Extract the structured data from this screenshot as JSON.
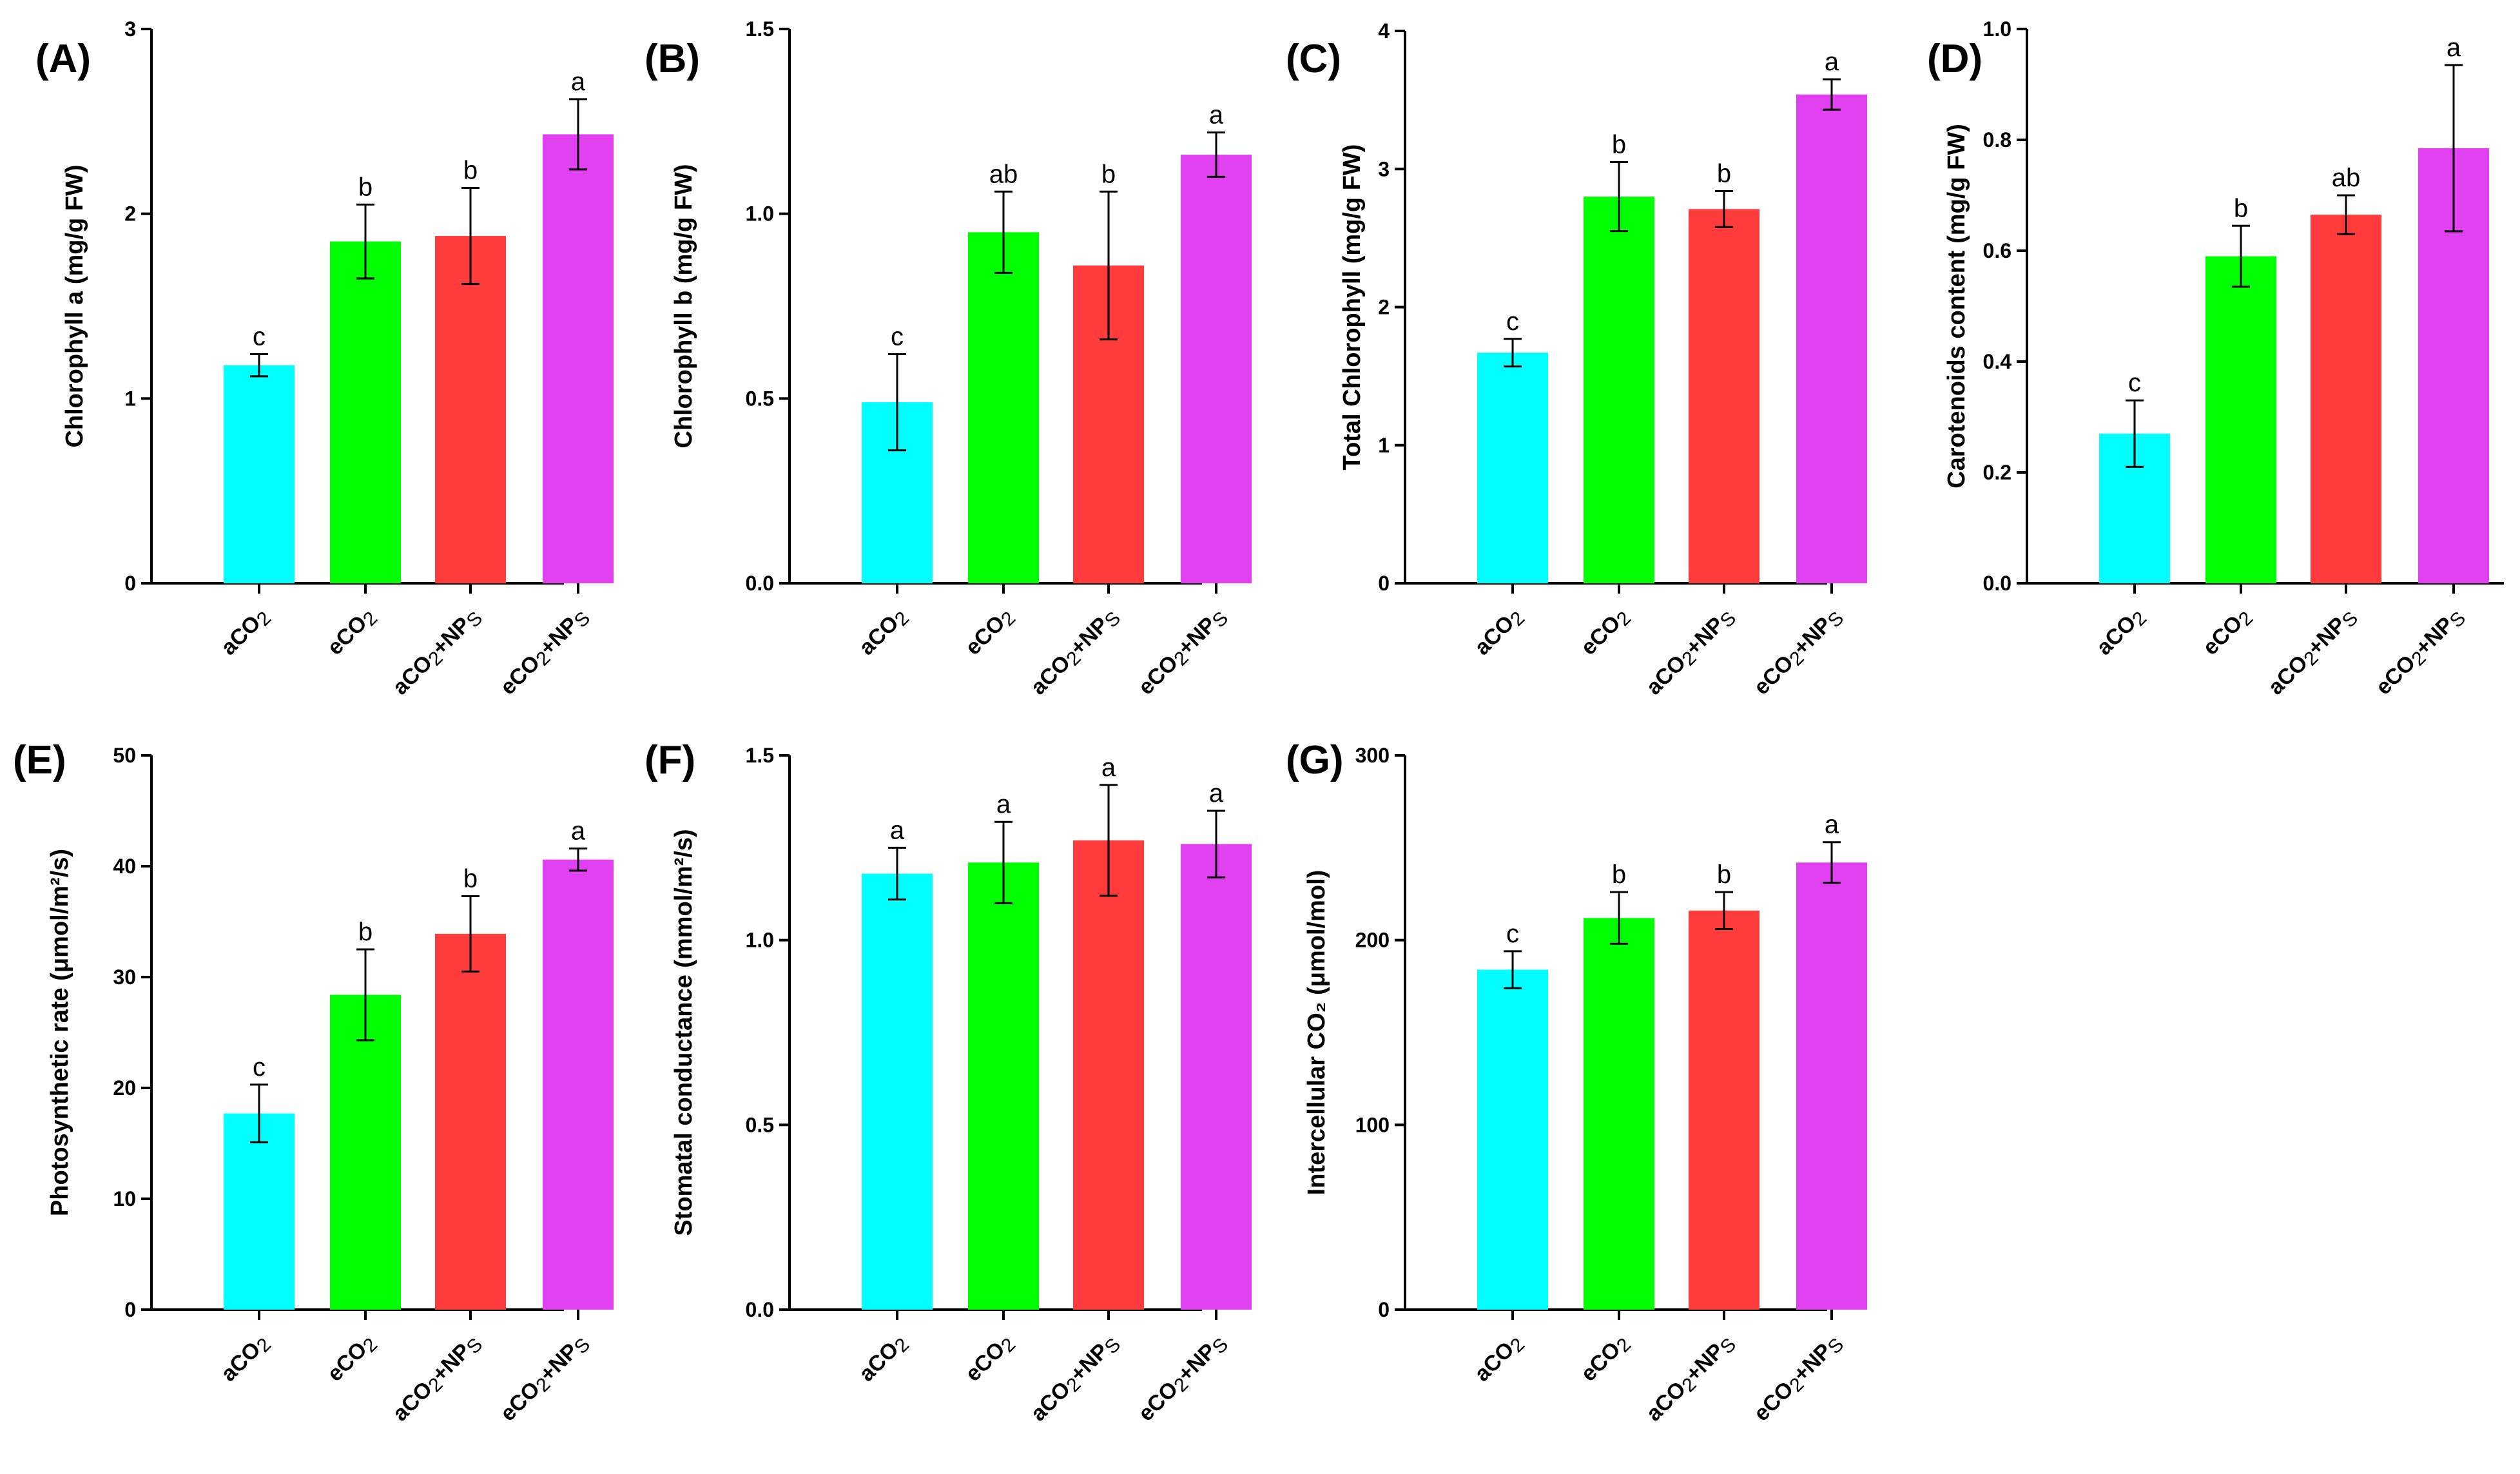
{
  "colors": [
    "#00FFFF",
    "#00FF00",
    "#FF3B3B",
    "#E040F0"
  ],
  "categories": [
    {
      "base": "aCO",
      "sub": "2",
      "rest": "",
      "sub2": ""
    },
    {
      "base": "eCO",
      "sub": "2",
      "rest": "",
      "sub2": ""
    },
    {
      "base": "aCO",
      "sub": "2",
      "rest": "+NP",
      "sub2": "S"
    },
    {
      "base": "eCO",
      "sub": "2",
      "rest": "+NP",
      "sub2": "S"
    }
  ],
  "chart_data": [
    {
      "type": "bar",
      "panel": "(A)",
      "ylabel": "Chlorophyll a (mg/g FW)",
      "ylim": [
        0,
        3
      ],
      "yticks": [
        0,
        1,
        2,
        3
      ],
      "ytick_labels": [
        "0",
        "1",
        "2",
        "3"
      ],
      "categories": [
        "aCO2",
        "eCO2",
        "aCO2+NPs",
        "eCO2+NPs"
      ],
      "values": [
        1.18,
        1.85,
        1.88,
        2.43
      ],
      "errors": [
        0.06,
        0.2,
        0.26,
        0.19
      ],
      "letters": [
        "c",
        "b",
        "b",
        "a"
      ]
    },
    {
      "type": "bar",
      "panel": "(B)",
      "ylabel": "Chlorophyll b (mg/g FW)",
      "ylim": [
        0,
        1.5
      ],
      "yticks": [
        0,
        0.5,
        1.0,
        1.5
      ],
      "ytick_labels": [
        "0.0",
        "0.5",
        "1.0",
        "1.5"
      ],
      "categories": [
        "aCO2",
        "eCO2",
        "aCO2+NPs",
        "eCO2+NPs"
      ],
      "values": [
        0.49,
        0.95,
        0.86,
        1.16
      ],
      "errors": [
        0.13,
        0.11,
        0.2,
        0.06
      ],
      "letters": [
        "c",
        "ab",
        "b",
        "a"
      ]
    },
    {
      "type": "bar",
      "panel": "(C)",
      "ylabel": "Total Chlorophyll (mg/g FW)",
      "ylim": [
        0,
        4
      ],
      "yticks": [
        0,
        1,
        2,
        3,
        4
      ],
      "ytick_labels": [
        "0",
        "1",
        "2",
        "3",
        "4"
      ],
      "categories": [
        "aCO2",
        "eCO2",
        "aCO2+NPs",
        "eCO2+NPs"
      ],
      "values": [
        1.67,
        2.8,
        2.71,
        3.54
      ],
      "errors": [
        0.1,
        0.25,
        0.13,
        0.11
      ],
      "letters": [
        "c",
        "b",
        "b",
        "a"
      ]
    },
    {
      "type": "bar",
      "panel": "(D)",
      "ylabel": "Carotenoids content (mg/g FW)",
      "ylim": [
        0,
        1.0
      ],
      "yticks": [
        0,
        0.2,
        0.4,
        0.6,
        0.8,
        1.0
      ],
      "ytick_labels": [
        "0.0",
        "0.2",
        "0.4",
        "0.6",
        "0.8",
        "1.0"
      ],
      "categories": [
        "aCO2",
        "eCO2",
        "aCO2+NPs",
        "eCO2+NPs"
      ],
      "values": [
        0.27,
        0.59,
        0.665,
        0.785
      ],
      "errors": [
        0.06,
        0.055,
        0.035,
        0.15
      ],
      "letters": [
        "c",
        "b",
        "ab",
        "a"
      ]
    },
    {
      "type": "bar",
      "panel": "(E)",
      "ylabel": "Photosynthetic rate (μmol/m²/s)",
      "ylim": [
        0,
        50
      ],
      "yticks": [
        0,
        10,
        20,
        30,
        40,
        50
      ],
      "ytick_labels": [
        "0",
        "10",
        "20",
        "30",
        "40",
        "50"
      ],
      "categories": [
        "aCO2",
        "eCO2",
        "aCO2+NPs",
        "eCO2+NPs"
      ],
      "values": [
        17.7,
        28.4,
        33.9,
        40.6
      ],
      "errors": [
        2.6,
        4.1,
        3.4,
        1.0
      ],
      "letters": [
        "c",
        "b",
        "b",
        "a"
      ]
    },
    {
      "type": "bar",
      "panel": "(F)",
      "ylabel": "Stomatal conductance (mmol/m²/s)",
      "ylim": [
        0,
        1.5
      ],
      "yticks": [
        0,
        0.5,
        1.0,
        1.5
      ],
      "ytick_labels": [
        "0.0",
        "0.5",
        "1.0",
        "1.5"
      ],
      "categories": [
        "aCO2",
        "eCO2",
        "aCO2+NPs",
        "eCO2+NPs"
      ],
      "values": [
        1.18,
        1.21,
        1.27,
        1.26
      ],
      "errors": [
        0.07,
        0.11,
        0.15,
        0.09
      ],
      "letters": [
        "a",
        "a",
        "a",
        "a"
      ]
    },
    {
      "type": "bar",
      "panel": "(G)",
      "ylabel": "Intercellular CO₂ (μmol/mol)",
      "ylim": [
        0,
        300
      ],
      "yticks": [
        0,
        100,
        200,
        300
      ],
      "ytick_labels": [
        "0",
        "100",
        "200",
        "300"
      ],
      "categories": [
        "aCO2",
        "eCO2",
        "aCO2+NPs",
        "eCO2+NPs"
      ],
      "values": [
        184,
        212,
        216,
        242
      ],
      "errors": [
        10,
        14,
        10,
        11
      ],
      "letters": [
        "c",
        "b",
        "b",
        "a"
      ]
    }
  ]
}
